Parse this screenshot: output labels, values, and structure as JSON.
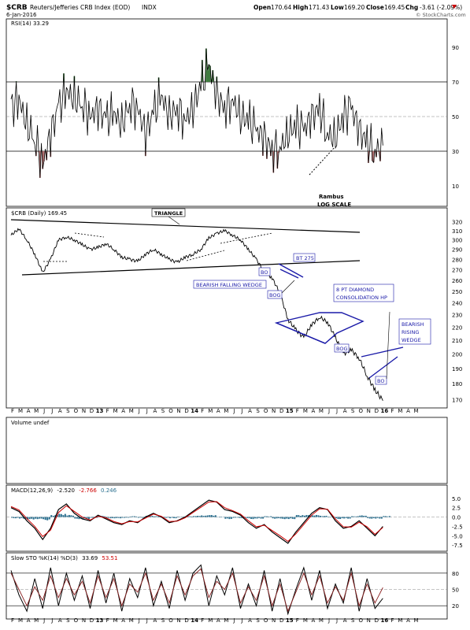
{
  "header": {
    "symbol": "$CRB",
    "name": "Reuters/Jefferies CRB Index (EOD)",
    "exchange": "INDX",
    "date": "6-Jan-2016",
    "quote": {
      "open": "170.64",
      "high": "171.43",
      "low": "169.20",
      "close": "169.45",
      "chg": "-3.61 (-2.09%)"
    },
    "quote_labels": {
      "open": "Open",
      "high": "High",
      "low": "Low",
      "close": "Close",
      "chg": "Chg"
    },
    "watermark": "© StockCharts.com"
  },
  "author_note": {
    "line1": "Rambus",
    "line2": "LOG SCALE"
  },
  "annotations": {
    "triangle": "TRIANGLE",
    "bo1": "BO",
    "bt275": "BT 275",
    "falling_wedge": "BEARISH FALLING WEDGE",
    "bog1": "BOG",
    "diamond_l1": "8 PT DIAMOND",
    "diamond_l2": "CONSOLIDATION HP",
    "bog2": "BOG",
    "rising_l1": "BEARISH",
    "rising_l2": "RISING",
    "rising_l3": "WEDGE",
    "bo2": "BO"
  },
  "x_axis": {
    "months": [
      "F",
      "M",
      "A",
      "M",
      "J",
      "J",
      "A",
      "S",
      "O",
      "N",
      "D",
      "13",
      "F",
      "M",
      "A",
      "M",
      "J",
      "J",
      "A",
      "S",
      "O",
      "N",
      "D",
      "14",
      "F",
      "M",
      "A",
      "M",
      "J",
      "J",
      "A",
      "S",
      "O",
      "N",
      "D",
      "15",
      "F",
      "M",
      "A",
      "M",
      "J",
      "J",
      "A",
      "S",
      "O",
      "N",
      "D",
      "16",
      "F",
      "M",
      "A",
      "M"
    ],
    "year_labels": [
      "13",
      "14",
      "15",
      "16"
    ]
  },
  "chart_data": [
    {
      "type": "line",
      "panel": "RSI",
      "title": "RSI(14) 33.29",
      "yticks": [
        10,
        30,
        50,
        70,
        90
      ],
      "ylim": [
        0,
        100
      ],
      "overbought": 70,
      "oversold": 30,
      "midline": 50,
      "last_value": 33.29,
      "colors": {
        "line": "#000000",
        "overbought_fill": "#3e7a3e",
        "oversold_fill": "#b07070"
      },
      "x_months": [
        0,
        1,
        2,
        3,
        4,
        5,
        6,
        7,
        8,
        9,
        10,
        11,
        12,
        13,
        14,
        15,
        16,
        17,
        18,
        19,
        20,
        21,
        22,
        23,
        24,
        25,
        26,
        27,
        28,
        29,
        30,
        31,
        32,
        33,
        34,
        35,
        36,
        37,
        38,
        39,
        40,
        41,
        42,
        43,
        44,
        45,
        46,
        47
      ],
      "values": [
        55,
        60,
        45,
        38,
        22,
        40,
        55,
        65,
        60,
        58,
        50,
        55,
        48,
        52,
        45,
        58,
        55,
        40,
        52,
        62,
        50,
        55,
        48,
        55,
        68,
        80,
        62,
        55,
        60,
        50,
        48,
        42,
        38,
        30,
        32,
        40,
        45,
        42,
        50,
        55,
        40,
        38,
        50,
        55,
        42,
        35,
        30,
        33.29
      ]
    },
    {
      "type": "line",
      "panel": "Price",
      "title": "$CRB (Daily) 169.45",
      "scale": "log",
      "yticks": [
        170,
        180,
        190,
        200,
        210,
        220,
        230,
        240,
        250,
        260,
        270,
        280,
        290,
        300,
        310,
        320
      ],
      "ylim": [
        167,
        325
      ],
      "last_value": 169.45,
      "x_months": [
        0,
        1,
        2,
        3,
        4,
        5,
        6,
        7,
        8,
        9,
        10,
        11,
        12,
        13,
        14,
        15,
        16,
        17,
        18,
        19,
        20,
        21,
        22,
        23,
        24,
        25,
        26,
        27,
        28,
        29,
        30,
        31,
        32,
        33,
        34,
        35,
        36,
        37,
        38,
        39,
        40,
        41,
        42,
        43,
        44,
        45,
        46,
        47
      ],
      "values": [
        305,
        312,
        300,
        285,
        267,
        280,
        300,
        303,
        300,
        295,
        290,
        292,
        296,
        290,
        282,
        280,
        278,
        285,
        290,
        285,
        280,
        277,
        282,
        285,
        290,
        302,
        307,
        310,
        305,
        300,
        290,
        280,
        268,
        262,
        248,
        226,
        218,
        212,
        222,
        228,
        224,
        212,
        200,
        203,
        197,
        185,
        176,
        169.45
      ],
      "trendlines": [
        {
          "name": "triangle-top",
          "from": [
            0,
            312
          ],
          "to": [
            40,
            305
          ]
        },
        {
          "name": "triangle-bottom",
          "from": [
            2,
            270
          ],
          "to": [
            40,
            280
          ]
        }
      ],
      "colors": {
        "line": "#000000",
        "annotation": "#1a1aa8"
      }
    },
    {
      "type": "bar",
      "panel": "Volume",
      "title": "Volume undef",
      "values": []
    },
    {
      "type": "line",
      "panel": "MACD",
      "title": "MACD(12,26,9) -2.520, -2.766, 0.246",
      "title_parts": {
        "label": "MACD(12,26,9)",
        "macd": "-2.520",
        "signal": "-2.766",
        "hist": "0.246"
      },
      "yticks": [
        -7.5,
        -5.0,
        -2.5,
        0.0,
        2.5,
        5.0
      ],
      "ylim": [
        -8.5,
        6
      ],
      "x_months": [
        0,
        1,
        2,
        3,
        4,
        5,
        6,
        7,
        8,
        9,
        10,
        11,
        12,
        13,
        14,
        15,
        16,
        17,
        18,
        19,
        20,
        21,
        22,
        23,
        24,
        25,
        26,
        27,
        28,
        29,
        30,
        31,
        32,
        33,
        34,
        35,
        36,
        37,
        38,
        39,
        40,
        41,
        42,
        43,
        44,
        45,
        46,
        47
      ],
      "series": [
        {
          "name": "MACD",
          "color": "#000000",
          "values": [
            2.5,
            1.5,
            -1,
            -3,
            -6,
            -3,
            2,
            3.5,
            1,
            -0.5,
            -1,
            0.5,
            -0.5,
            -1.5,
            -2,
            -1,
            -1.5,
            0,
            1,
            0,
            -1.5,
            -1,
            0,
            1.5,
            3,
            4.5,
            4,
            2,
            1.5,
            0.5,
            -1.5,
            -3,
            -2,
            -4,
            -5.5,
            -7,
            -4,
            -1.5,
            1,
            2.5,
            2,
            -1,
            -3,
            -2.5,
            -1,
            -3,
            -5,
            -2.52
          ]
        },
        {
          "name": "Signal",
          "color": "#cc0000",
          "values": [
            2.8,
            1.9,
            -0.4,
            -2.5,
            -5.2,
            -3.5,
            1.2,
            3,
            1.5,
            0,
            -0.8,
            0.2,
            -0.2,
            -1.2,
            -1.8,
            -1.2,
            -1.3,
            -0.3,
            0.8,
            0.2,
            -1.2,
            -1.1,
            -0.2,
            1.2,
            2.6,
            4,
            4.1,
            2.5,
            1.7,
            0.8,
            -1,
            -2.6,
            -2.2,
            -3.6,
            -5,
            -6.5,
            -4.5,
            -2,
            0.5,
            2.2,
            2.1,
            -0.5,
            -2.6,
            -2.7,
            -1.4,
            -2.6,
            -4.6,
            -2.766
          ]
        },
        {
          "name": "Histogram",
          "color": "#2a6f8f",
          "values": [
            -0.3,
            -0.4,
            -0.6,
            -0.5,
            -0.8,
            0.5,
            0.8,
            0.5,
            -0.5,
            -0.5,
            -0.2,
            0.3,
            -0.3,
            -0.3,
            -0.2,
            0.2,
            -0.2,
            0.3,
            0.2,
            -0.2,
            -0.3,
            0.1,
            0.2,
            0.3,
            0.4,
            0.5,
            -0.1,
            -0.5,
            -0.2,
            -0.3,
            -0.5,
            -0.4,
            0.2,
            -0.4,
            -0.5,
            -0.5,
            0.5,
            0.5,
            0.5,
            0.3,
            -0.1,
            -0.5,
            -0.4,
            0.2,
            0.4,
            -0.4,
            -0.4,
            0.246
          ]
        }
      ],
      "colors": {
        "macd": "#000000",
        "signal": "#cc0000",
        "histogram": "#2a6f8f"
      }
    },
    {
      "type": "line",
      "panel": "Slow STO",
      "title": "Slow STO %K(14) %D(3) 33.69, 53.51",
      "title_parts": {
        "label": "Slow STO %K(14) %D(3)",
        "k": "33.69",
        "d": "53.51"
      },
      "yticks": [
        20,
        50,
        80
      ],
      "ylim": [
        0,
        100
      ],
      "x_months": [
        0,
        1,
        2,
        3,
        4,
        5,
        6,
        7,
        8,
        9,
        10,
        11,
        12,
        13,
        14,
        15,
        16,
        17,
        18,
        19,
        20,
        21,
        22,
        23,
        24,
        25,
        26,
        27,
        28,
        29,
        30,
        31,
        32,
        33,
        34,
        35,
        36,
        37,
        38,
        39,
        40,
        41,
        42,
        43,
        44,
        45,
        46,
        47
      ],
      "series": [
        {
          "name": "%K",
          "color": "#000000",
          "values": [
            85,
            40,
            10,
            70,
            15,
            90,
            20,
            80,
            30,
            75,
            15,
            85,
            25,
            80,
            10,
            70,
            35,
            90,
            20,
            65,
            15,
            85,
            30,
            80,
            95,
            20,
            75,
            40,
            90,
            15,
            60,
            20,
            85,
            10,
            70,
            5,
            50,
            90,
            30,
            85,
            15,
            60,
            25,
            90,
            10,
            70,
            15,
            33.69
          ]
        },
        {
          "name": "%D",
          "color": "#8a2020",
          "values": [
            80,
            50,
            20,
            55,
            30,
            75,
            35,
            70,
            40,
            65,
            25,
            75,
            35,
            70,
            20,
            60,
            45,
            80,
            30,
            60,
            25,
            75,
            40,
            75,
            88,
            35,
            65,
            50,
            80,
            25,
            55,
            30,
            75,
            20,
            60,
            10,
            45,
            80,
            40,
            75,
            25,
            55,
            30,
            80,
            20,
            60,
            25,
            53.51
          ]
        }
      ],
      "colors": {
        "k": "#000000",
        "d": "#8a2020"
      }
    }
  ]
}
